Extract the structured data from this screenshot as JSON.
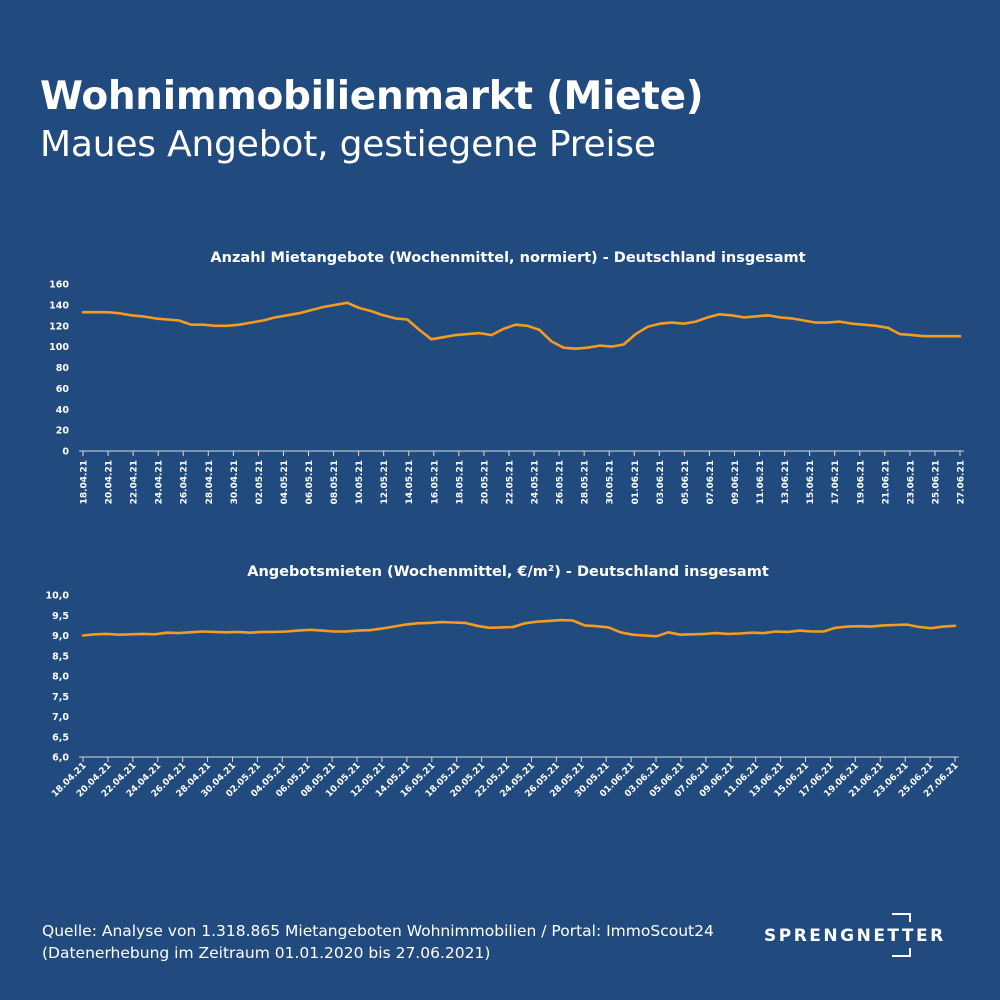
{
  "title": "Wohnimmobilienmarkt (Miete)",
  "subtitle": "Maues Angebot, gestiegene Preise",
  "footer": {
    "source": "Quelle: Analyse von 1.318.865 Mietangeboten Wohnimmobilien / Portal: ImmoScout24",
    "period": "(Datenerhebung im Zeitraum 01.01.2020 bis  27.06.2021)"
  },
  "logo": {
    "text": "SPRENGNETTER"
  },
  "colors": {
    "background": "#214a7e",
    "line": "#f39c1f",
    "text": "#ffffff"
  },
  "chart_data": [
    {
      "type": "line",
      "title": "Anzahl Mietangebote (Wochenmittel, normiert) - Deutschland insgesamt",
      "ylim": [
        0,
        160
      ],
      "yticks": [
        "0",
        "20",
        "40",
        "60",
        "80",
        "100",
        "120",
        "140",
        "160"
      ],
      "xtick_labels": [
        "18.04.21",
        "20.04.21",
        "22.04.21",
        "24.04.21",
        "26.04.21",
        "28.04.21",
        "30.04.21",
        "02.05.21",
        "04.05.21",
        "06.05.21",
        "08.05.21",
        "10.05.21",
        "12.05.21",
        "14.05.21",
        "16.05.21",
        "18.05.21",
        "20.05.21",
        "22.05.21",
        "24.05.21",
        "26.05.21",
        "28.05.21",
        "30.05.21",
        "01.06.21",
        "03.06.21",
        "05.06.21",
        "07.06.21",
        "09.06.21",
        "11.06.21",
        "13.06.21",
        "15.06.21",
        "17.06.21",
        "19.06.21",
        "21.06.21",
        "23.06.21",
        "25.06.21",
        "27.06.21"
      ],
      "x_start": "18.04.21",
      "x_end": "27.06.21",
      "values": [
        133,
        133,
        133,
        132,
        130,
        129,
        127,
        126,
        125,
        121,
        121,
        120,
        120,
        121,
        123,
        125,
        128,
        130,
        132,
        135,
        138,
        140,
        142,
        137,
        134,
        130,
        127,
        126,
        116,
        107,
        109,
        111,
        112,
        113,
        111,
        117,
        121,
        120,
        116,
        105,
        99,
        98,
        99,
        101,
        100,
        102,
        112,
        119,
        122,
        123,
        122,
        124,
        128,
        131,
        130,
        128,
        129,
        130,
        128,
        127,
        125,
        123,
        123,
        124,
        122,
        121,
        120,
        118,
        112,
        111,
        110,
        110,
        110,
        110
      ]
    },
    {
      "type": "line",
      "title": "Angebotsmieten (Wochenmittel, €/m²) - Deutschland insgesamt",
      "ylim": [
        6.0,
        10.0
      ],
      "yticks": [
        "6,0",
        "6,5",
        "7,0",
        "7,5",
        "8,0",
        "8,5",
        "9,0",
        "9,5",
        "10,0"
      ],
      "xtick_labels": [
        "18.04.21",
        "20.04.21",
        "22.04.21",
        "24.04.21",
        "26.04.21",
        "28.04.21",
        "30.04.21",
        "02.05.21",
        "04.05.21",
        "06.05.21",
        "08.05.21",
        "10.05.21",
        "12.05.21",
        "14.05.21",
        "16.05.21",
        "18.05.21",
        "20.05.21",
        "22.05.21",
        "24.05.21",
        "26.05.21",
        "28.05.21",
        "30.05.21",
        "01.06.21",
        "03.06.21",
        "05.06.21",
        "07.06.21",
        "09.06.21",
        "11.06.21",
        "13.06.21",
        "15.06.21",
        "17.06.21",
        "19.06.21",
        "21.06.21",
        "23.06.21",
        "25.06.21",
        "27.06.21"
      ],
      "x_start": "18.04.21",
      "x_end": "27.06.21",
      "values": [
        9.0,
        9.03,
        9.04,
        9.02,
        9.03,
        9.04,
        9.03,
        9.07,
        9.06,
        9.08,
        9.1,
        9.09,
        9.08,
        9.09,
        9.07,
        9.09,
        9.09,
        9.1,
        9.12,
        9.14,
        9.12,
        9.1,
        9.1,
        9.12,
        9.13,
        9.17,
        9.22,
        9.27,
        9.3,
        9.31,
        9.33,
        9.32,
        9.31,
        9.24,
        9.19,
        9.2,
        9.21,
        9.3,
        9.34,
        9.36,
        9.38,
        9.37,
        9.25,
        9.23,
        9.2,
        9.08,
        9.02,
        9.0,
        8.98,
        9.08,
        9.02,
        9.03,
        9.04,
        9.06,
        9.04,
        9.05,
        9.07,
        9.06,
        9.1,
        9.09,
        9.12,
        9.1,
        9.1,
        9.19,
        9.22,
        9.23,
        9.22,
        9.25,
        9.26,
        9.27,
        9.21,
        9.18,
        9.22,
        9.24
      ]
    }
  ]
}
